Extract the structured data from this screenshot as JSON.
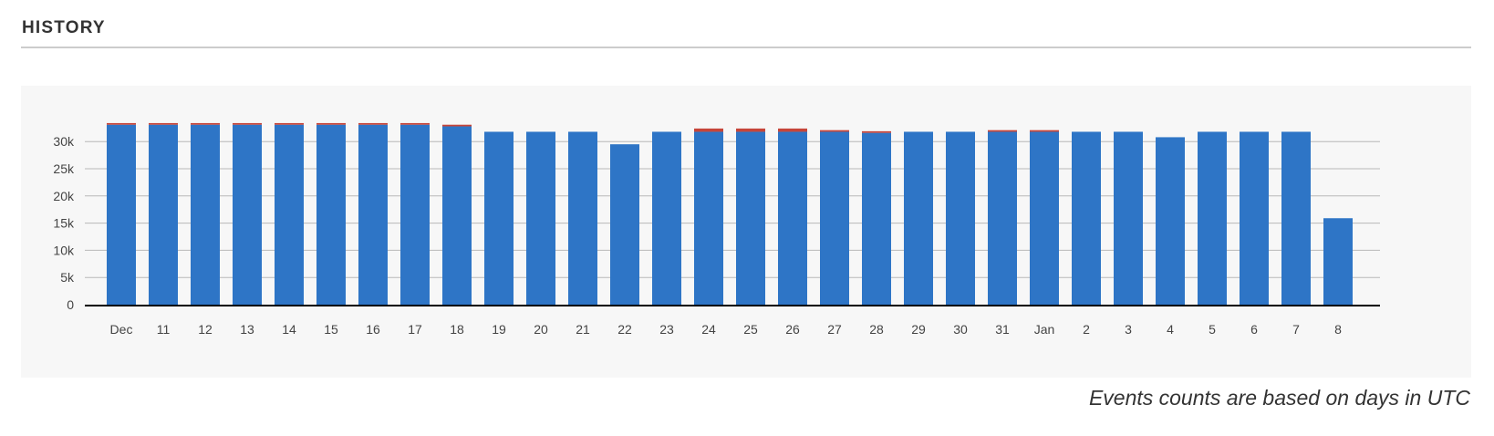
{
  "header": {
    "title": "HISTORY"
  },
  "footnote": "Events counts are based on days in UTC",
  "colors": {
    "primary": "#2e75c6",
    "secondary": "#c6453a",
    "grid": "#b8b8b8",
    "axis": "#000000"
  },
  "chart_data": {
    "type": "bar",
    "stacked": true,
    "categories": [
      "Dec",
      "11",
      "12",
      "13",
      "14",
      "15",
      "16",
      "17",
      "18",
      "19",
      "20",
      "21",
      "22",
      "23",
      "24",
      "25",
      "26",
      "27",
      "28",
      "29",
      "30",
      "31",
      "Jan",
      "2",
      "3",
      "4",
      "5",
      "6",
      "7",
      "8"
    ],
    "series": [
      {
        "color": "#2e75c6",
        "values": [
          33100,
          33100,
          33100,
          33100,
          33100,
          33100,
          33100,
          33100,
          32800,
          31800,
          31800,
          31800,
          29500,
          31800,
          31800,
          31800,
          31800,
          31800,
          31600,
          31800,
          31800,
          31800,
          31800,
          31800,
          31800,
          30800,
          31800,
          31800,
          31800,
          15900
        ]
      },
      {
        "color": "#c6453a",
        "values": [
          300,
          300,
          300,
          300,
          300,
          300,
          300,
          300,
          300,
          0,
          0,
          0,
          0,
          0,
          600,
          600,
          600,
          300,
          300,
          0,
          0,
          300,
          300,
          0,
          0,
          0,
          0,
          0,
          0,
          0
        ]
      }
    ],
    "yticks": [
      "0",
      "5k",
      "10k",
      "15k",
      "20k",
      "25k",
      "30k"
    ],
    "ylim": [
      0,
      35000
    ],
    "grid": true,
    "legend": "none"
  }
}
